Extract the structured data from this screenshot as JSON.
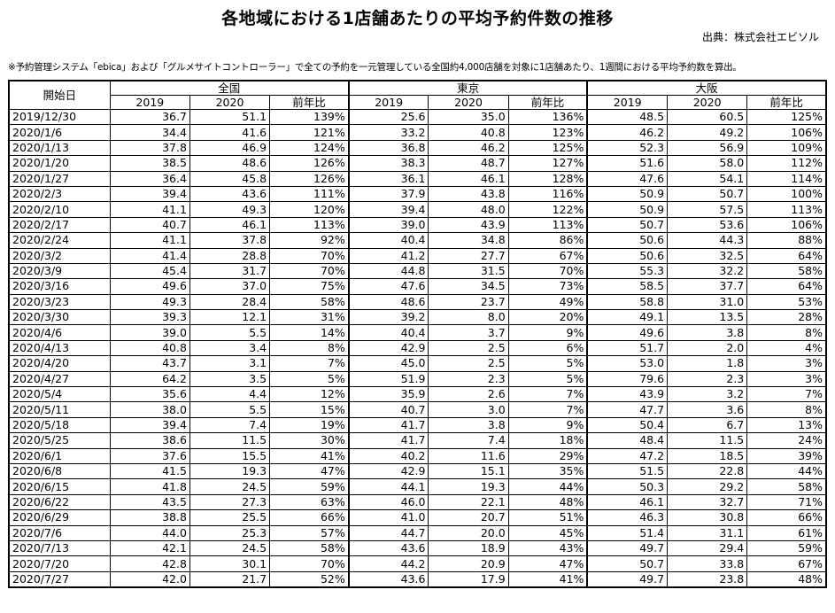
{
  "title": "各地域における1店舗あたりの平均予約件数の推移",
  "source": "出典：株式会社エビソル",
  "note": "※予約管理システム「ebica」および「グルメサイトコントローラー」で全ての予約を一元管理している全国約4,000店舗を対象に1店舗あたり、1週間における平均予約数を算出。",
  "table": {
    "start_label": "開始日",
    "regions": [
      "全国",
      "東京",
      "大阪"
    ],
    "sub_headers": [
      "2019",
      "2020",
      "前年比"
    ],
    "rows": [
      [
        "2019/12/30",
        "36.7",
        "51.1",
        "139%",
        "25.6",
        "35.0",
        "136%",
        "48.5",
        "60.5",
        "125%"
      ],
      [
        "2020/1/6",
        "34.4",
        "41.6",
        "121%",
        "33.2",
        "40.8",
        "123%",
        "46.2",
        "49.2",
        "106%"
      ],
      [
        "2020/1/13",
        "37.8",
        "46.9",
        "124%",
        "36.8",
        "46.2",
        "125%",
        "52.3",
        "56.9",
        "109%"
      ],
      [
        "2020/1/20",
        "38.5",
        "48.6",
        "126%",
        "38.3",
        "48.7",
        "127%",
        "51.6",
        "58.0",
        "112%"
      ],
      [
        "2020/1/27",
        "36.4",
        "45.8",
        "126%",
        "36.1",
        "46.1",
        "128%",
        "47.6",
        "54.1",
        "114%"
      ],
      [
        "2020/2/3",
        "39.4",
        "43.6",
        "111%",
        "37.9",
        "43.8",
        "116%",
        "50.9",
        "50.7",
        "100%"
      ],
      [
        "2020/2/10",
        "41.1",
        "49.3",
        "120%",
        "39.4",
        "48.0",
        "122%",
        "50.9",
        "57.5",
        "113%"
      ],
      [
        "2020/2/17",
        "40.7",
        "46.1",
        "113%",
        "39.0",
        "43.9",
        "113%",
        "50.7",
        "53.6",
        "106%"
      ],
      [
        "2020/2/24",
        "41.1",
        "37.8",
        "92%",
        "40.4",
        "34.8",
        "86%",
        "50.6",
        "44.3",
        "88%"
      ],
      [
        "2020/3/2",
        "41.4",
        "28.8",
        "70%",
        "41.2",
        "27.7",
        "67%",
        "50.6",
        "32.5",
        "64%"
      ],
      [
        "2020/3/9",
        "45.4",
        "31.7",
        "70%",
        "44.8",
        "31.5",
        "70%",
        "55.3",
        "32.2",
        "58%"
      ],
      [
        "2020/3/16",
        "49.6",
        "37.0",
        "75%",
        "47.6",
        "34.5",
        "73%",
        "58.5",
        "37.7",
        "64%"
      ],
      [
        "2020/3/23",
        "49.3",
        "28.4",
        "58%",
        "48.6",
        "23.7",
        "49%",
        "58.8",
        "31.0",
        "53%"
      ],
      [
        "2020/3/30",
        "39.3",
        "12.1",
        "31%",
        "39.2",
        "8.0",
        "20%",
        "49.1",
        "13.5",
        "28%"
      ],
      [
        "2020/4/6",
        "39.0",
        "5.5",
        "14%",
        "40.4",
        "3.7",
        "9%",
        "49.6",
        "3.8",
        "8%"
      ],
      [
        "2020/4/13",
        "40.8",
        "3.4",
        "8%",
        "42.9",
        "2.5",
        "6%",
        "51.7",
        "2.0",
        "4%"
      ],
      [
        "2020/4/20",
        "43.7",
        "3.1",
        "7%",
        "45.0",
        "2.5",
        "5%",
        "53.0",
        "1.8",
        "3%"
      ],
      [
        "2020/4/27",
        "64.2",
        "3.5",
        "5%",
        "51.9",
        "2.3",
        "5%",
        "79.6",
        "2.3",
        "3%"
      ],
      [
        "2020/5/4",
        "35.6",
        "4.4",
        "12%",
        "35.9",
        "2.6",
        "7%",
        "43.9",
        "3.2",
        "7%"
      ],
      [
        "2020/5/11",
        "38.0",
        "5.5",
        "15%",
        "40.7",
        "3.0",
        "7%",
        "47.7",
        "3.6",
        "8%"
      ],
      [
        "2020/5/18",
        "39.4",
        "7.4",
        "19%",
        "41.7",
        "3.8",
        "9%",
        "50.4",
        "6.7",
        "13%"
      ],
      [
        "2020/5/25",
        "38.6",
        "11.5",
        "30%",
        "41.7",
        "7.4",
        "18%",
        "48.4",
        "11.5",
        "24%"
      ],
      [
        "2020/6/1",
        "37.6",
        "15.5",
        "41%",
        "40.2",
        "11.6",
        "29%",
        "47.2",
        "18.5",
        "39%"
      ],
      [
        "2020/6/8",
        "41.5",
        "19.3",
        "47%",
        "42.9",
        "15.1",
        "35%",
        "51.5",
        "22.8",
        "44%"
      ],
      [
        "2020/6/15",
        "41.8",
        "24.5",
        "59%",
        "44.1",
        "19.3",
        "44%",
        "50.3",
        "29.2",
        "58%"
      ],
      [
        "2020/6/22",
        "43.5",
        "27.3",
        "63%",
        "46.0",
        "22.1",
        "48%",
        "46.1",
        "32.7",
        "71%"
      ],
      [
        "2020/6/29",
        "38.8",
        "25.5",
        "66%",
        "41.0",
        "20.7",
        "51%",
        "46.3",
        "30.8",
        "66%"
      ],
      [
        "2020/7/6",
        "44.0",
        "25.3",
        "57%",
        "44.7",
        "20.0",
        "45%",
        "51.4",
        "31.1",
        "61%"
      ],
      [
        "2020/7/13",
        "42.1",
        "24.5",
        "58%",
        "43.6",
        "18.9",
        "43%",
        "49.7",
        "29.4",
        "59%"
      ],
      [
        "2020/7/20",
        "42.8",
        "30.1",
        "70%",
        "44.2",
        "20.9",
        "47%",
        "50.7",
        "33.8",
        "67%"
      ],
      [
        "2020/7/27",
        "42.0",
        "21.7",
        "52%",
        "43.6",
        "17.9",
        "41%",
        "49.7",
        "23.8",
        "48%"
      ]
    ]
  }
}
